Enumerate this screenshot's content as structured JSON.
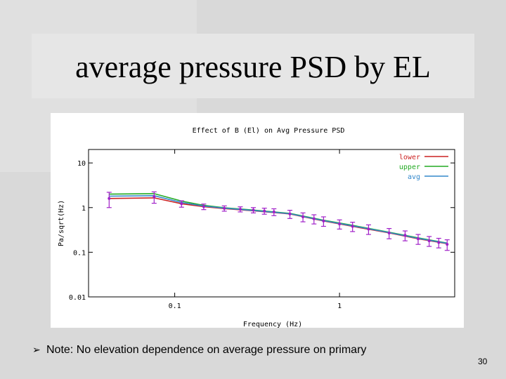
{
  "slide": {
    "title": "average pressure PSD by EL",
    "note": "Note: No elevation dependence on average pressure on primary",
    "page_number": "30"
  },
  "colors": {
    "lower": "#cc2222",
    "upper": "#22aa22",
    "avg": "#3388cc",
    "error_bars": "#a020c8"
  },
  "chart_data": {
    "type": "line",
    "title": "Effect of B (El) on Avg Pressure PSD",
    "xlabel": "Frequency (Hz)",
    "ylabel": "Pa/sqrt(Hz)",
    "xscale": "log",
    "yscale": "log",
    "xlim": [
      0.03,
      5
    ],
    "ylim": [
      0.01,
      20
    ],
    "x_ticks": [
      {
        "value": 0.1,
        "label": "0.1"
      },
      {
        "value": 1,
        "label": "1"
      }
    ],
    "y_ticks": [
      {
        "value": 0.01,
        "label": "0.01"
      },
      {
        "value": 0.1,
        "label": "0.1"
      },
      {
        "value": 1,
        "label": "1"
      },
      {
        "value": 10,
        "label": "10"
      }
    ],
    "legend_position": "top-right",
    "grid": false,
    "series": [
      {
        "name": "lower",
        "color_key": "lower",
        "x": [
          0.04,
          0.075,
          0.11,
          0.15,
          0.2,
          0.3,
          0.5,
          0.8,
          1.2,
          2,
          3,
          4.5
        ],
        "y": [
          1.6,
          1.65,
          1.22,
          1.05,
          0.95,
          0.85,
          0.72,
          0.5,
          0.38,
          0.27,
          0.2,
          0.155
        ]
      },
      {
        "name": "upper",
        "color_key": "upper",
        "x": [
          0.04,
          0.075,
          0.11,
          0.15,
          0.2,
          0.3,
          0.5,
          0.8,
          1.2,
          2,
          3,
          4.5
        ],
        "y": [
          2.0,
          2.05,
          1.4,
          1.12,
          0.99,
          0.88,
          0.74,
          0.52,
          0.4,
          0.28,
          0.21,
          0.16
        ]
      },
      {
        "name": "avg",
        "color_key": "avg",
        "x": [
          0.04,
          0.075,
          0.11,
          0.15,
          0.2,
          0.3,
          0.5,
          0.8,
          1.2,
          2,
          3,
          4.5
        ],
        "y": [
          1.8,
          1.85,
          1.3,
          1.08,
          0.97,
          0.86,
          0.73,
          0.51,
          0.39,
          0.275,
          0.205,
          0.158
        ]
      }
    ],
    "error_bar_points": {
      "x": [
        0.04,
        0.075,
        0.11,
        0.15,
        0.2,
        0.25,
        0.3,
        0.35,
        0.4,
        0.5,
        0.6,
        0.7,
        0.8,
        1.0,
        1.2,
        1.5,
        2,
        2.5,
        3,
        3.5,
        4,
        4.5
      ],
      "y": [
        1.6,
        1.75,
        1.22,
        1.05,
        0.96,
        0.92,
        0.88,
        0.84,
        0.8,
        0.72,
        0.62,
        0.56,
        0.5,
        0.43,
        0.38,
        0.33,
        0.27,
        0.24,
        0.2,
        0.18,
        0.165,
        0.15
      ],
      "err": [
        0.6,
        0.5,
        0.2,
        0.15,
        0.13,
        0.12,
        0.12,
        0.13,
        0.14,
        0.15,
        0.14,
        0.13,
        0.12,
        0.1,
        0.09,
        0.08,
        0.07,
        0.06,
        0.05,
        0.045,
        0.04,
        0.04
      ]
    }
  }
}
